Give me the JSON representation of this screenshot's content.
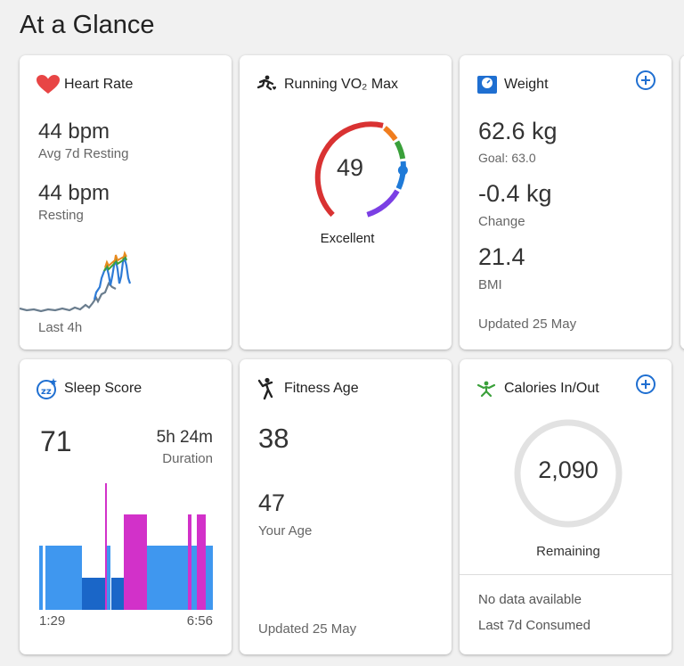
{
  "page": {
    "title": "At a Glance"
  },
  "heart_rate": {
    "title": "Heart Rate",
    "avg_value": "44 bpm",
    "avg_label": "Avg 7d Resting",
    "resting_value": "44 bpm",
    "resting_label": "Resting",
    "footer": "Last 4h",
    "icon": "heart-icon"
  },
  "vo2max": {
    "title": "Running VO₂ Max",
    "value": "49",
    "rating": "Excellent",
    "icon": "runner-icon",
    "gauge_colors": [
      "#d93232",
      "#f07d1e",
      "#3aa03a",
      "#1f7ad8",
      "#7b3fe4"
    ]
  },
  "weight": {
    "title": "Weight",
    "value": "62.6 kg",
    "goal": "Goal: 63.0",
    "change_value": "-0.4 kg",
    "change_label": "Change",
    "bmi_value": "21.4",
    "bmi_label": "BMI",
    "footer": "Updated 25 May",
    "icon": "scale-icon"
  },
  "sleep": {
    "title": "Sleep Score",
    "score": "71",
    "duration_value": "5h 24m",
    "duration_label": "Duration",
    "start_time": "1:29",
    "end_time": "6:56",
    "icon": "sleep-icon",
    "colors": {
      "light": "#3f97ef",
      "deep": "#1a66c8",
      "rem": "#d231c9",
      "awake": "#d231c9"
    }
  },
  "fitness_age": {
    "title": "Fitness Age",
    "value": "38",
    "your_age_value": "47",
    "your_age_label": "Your Age",
    "footer": "Updated 25 May",
    "icon": "fitness-icon"
  },
  "calories": {
    "title": "Calories In/Out",
    "value": "2,090",
    "label": "Remaining",
    "no_data": "No data available",
    "consumed_label": "Last 7d Consumed",
    "icon": "calories-icon"
  },
  "colors": {
    "accent": "#1f6fd1",
    "heart": "#e84545"
  }
}
